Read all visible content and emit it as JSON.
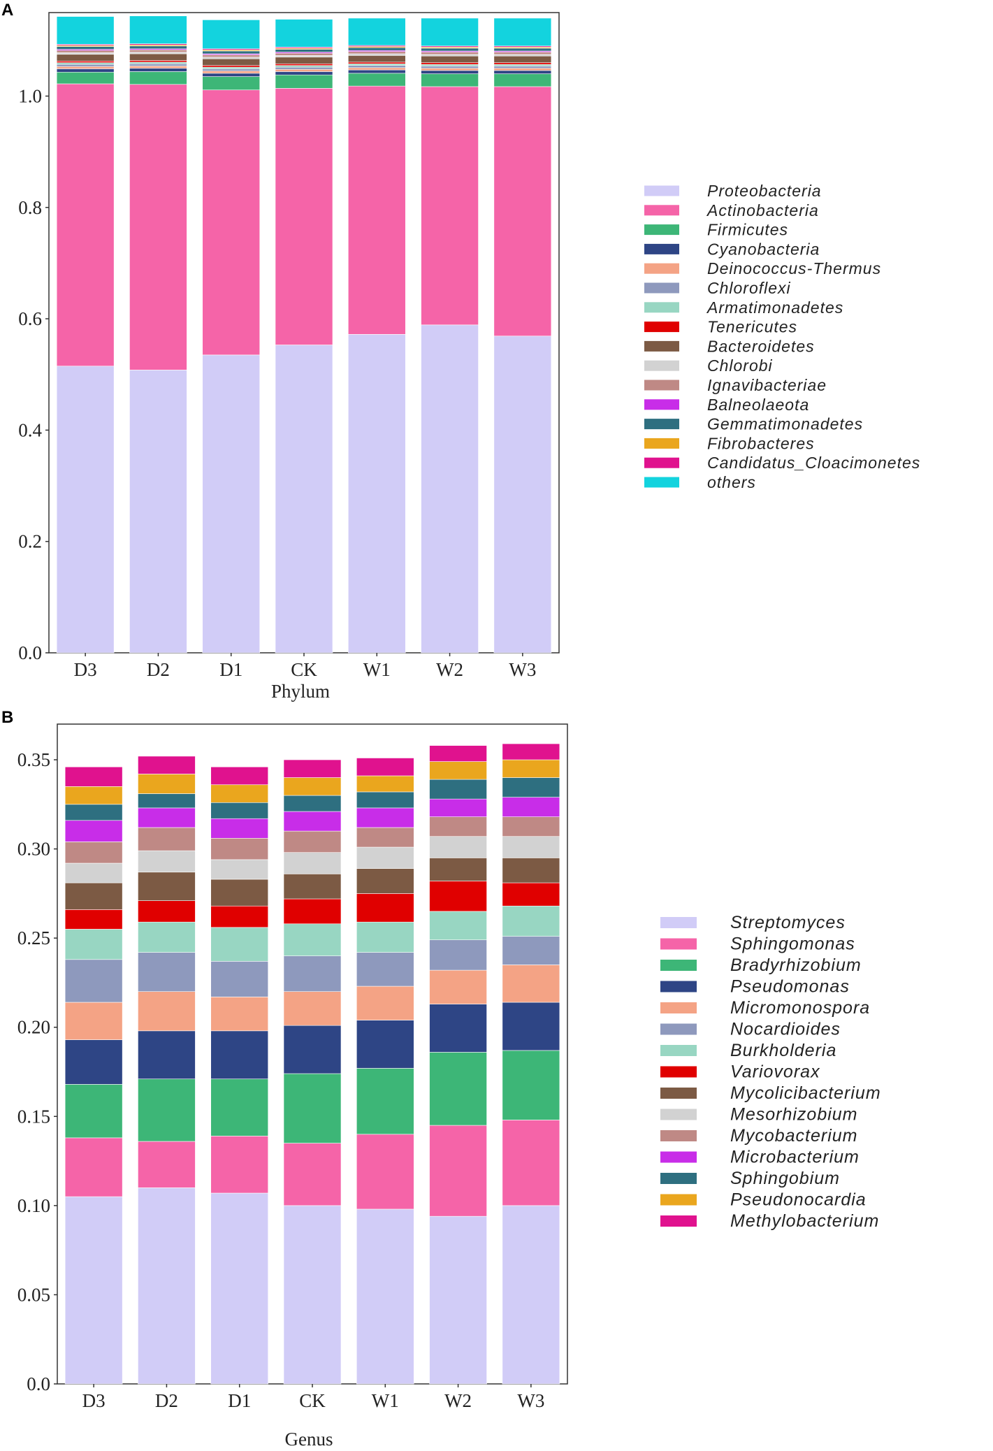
{
  "chart_data": [
    {
      "panel": "A",
      "type": "bar",
      "stacked": true,
      "title": "",
      "xlabel": "Phylum",
      "ylabel": "",
      "ylim": [
        0,
        1.15
      ],
      "yticks": [
        "0.0",
        "0.2",
        "0.4",
        "0.6",
        "0.8",
        "1.0"
      ],
      "ytick_values": [
        0,
        0.2,
        0.4,
        0.6,
        0.8,
        1.0
      ],
      "categories": [
        "D3",
        "D2",
        "D1",
        "CK",
        "W1",
        "W2",
        "W3"
      ],
      "series": [
        {
          "name": "Proteobacteria",
          "color": "#d1ccf7",
          "values": [
            0.515,
            0.508,
            0.535,
            0.553,
            0.572,
            0.589,
            0.569
          ]
        },
        {
          "name": "Actinobacteria",
          "color": "#f564a8",
          "values": [
            0.507,
            0.513,
            0.476,
            0.461,
            0.446,
            0.428,
            0.448
          ]
        },
        {
          "name": "Firmicutes",
          "color": "#3db677",
          "values": [
            0.021,
            0.023,
            0.024,
            0.024,
            0.023,
            0.023,
            0.023
          ]
        },
        {
          "name": "Cyanobacteria",
          "color": "#2e4585",
          "values": [
            0.006,
            0.006,
            0.006,
            0.006,
            0.006,
            0.006,
            0.006
          ]
        },
        {
          "name": "Deinococcus-Thermus",
          "color": "#f4a385",
          "values": [
            0.004,
            0.004,
            0.004,
            0.004,
            0.004,
            0.004,
            0.004
          ]
        },
        {
          "name": "Chloroflexi",
          "color": "#8e99bd",
          "values": [
            0.004,
            0.004,
            0.004,
            0.004,
            0.004,
            0.004,
            0.004
          ]
        },
        {
          "name": "Armatimonadetes",
          "color": "#98d6c2",
          "values": [
            0.003,
            0.003,
            0.003,
            0.003,
            0.003,
            0.003,
            0.003
          ]
        },
        {
          "name": "Tenericutes",
          "color": "#e00000",
          "values": [
            0.003,
            0.003,
            0.003,
            0.003,
            0.003,
            0.003,
            0.003
          ]
        },
        {
          "name": "Bacteroidetes",
          "color": "#7c5a44",
          "values": [
            0.012,
            0.012,
            0.012,
            0.012,
            0.012,
            0.012,
            0.012
          ]
        },
        {
          "name": "Chlorobi",
          "color": "#d2d2d2",
          "values": [
            0.003,
            0.003,
            0.003,
            0.003,
            0.003,
            0.003,
            0.003
          ]
        },
        {
          "name": "Ignavibacteriae",
          "color": "#bf8985",
          "values": [
            0.004,
            0.004,
            0.004,
            0.004,
            0.004,
            0.004,
            0.004
          ]
        },
        {
          "name": "Balneolaeota",
          "color": "#c82de8",
          "values": [
            0.002,
            0.002,
            0.002,
            0.002,
            0.002,
            0.002,
            0.002
          ]
        },
        {
          "name": "Gemmatimonadetes",
          "color": "#2e6f80",
          "values": [
            0.005,
            0.005,
            0.005,
            0.005,
            0.005,
            0.005,
            0.005
          ]
        },
        {
          "name": "Fibrobacteres",
          "color": "#eaa61e",
          "values": [
            0.002,
            0.002,
            0.002,
            0.002,
            0.002,
            0.002,
            0.002
          ]
        },
        {
          "name": "Candidatus_Cloacimonetes",
          "color": "#e0128e",
          "values": [
            0.002,
            0.002,
            0.002,
            0.002,
            0.002,
            0.002,
            0.002
          ]
        },
        {
          "name": "others",
          "color": "#13d3de",
          "values": [
            0.05,
            0.05,
            0.052,
            0.05,
            0.049,
            0.05,
            0.05
          ]
        }
      ]
    },
    {
      "panel": "B",
      "type": "bar",
      "stacked": true,
      "title": "",
      "xlabel": "Genus",
      "ylabel": "",
      "ylim": [
        0,
        0.37
      ],
      "yticks": [
        "0.0",
        "0.05",
        "0.10",
        "0.15",
        "0.20",
        "0.25",
        "0.30",
        "0.35"
      ],
      "ytick_values": [
        0,
        0.05,
        0.1,
        0.15,
        0.2,
        0.25,
        0.3,
        0.35
      ],
      "categories": [
        "D3",
        "D2",
        "D1",
        "CK",
        "W1",
        "W2",
        "W3"
      ],
      "series": [
        {
          "name": "Streptomyces",
          "color": "#d1ccf7",
          "values": [
            0.105,
            0.11,
            0.107,
            0.1,
            0.098,
            0.094,
            0.1
          ]
        },
        {
          "name": "Sphingomonas",
          "color": "#f564a8",
          "values": [
            0.033,
            0.026,
            0.032,
            0.035,
            0.042,
            0.051,
            0.048
          ]
        },
        {
          "name": "Bradyrhizobium",
          "color": "#3db677",
          "values": [
            0.03,
            0.035,
            0.032,
            0.039,
            0.037,
            0.041,
            0.039
          ]
        },
        {
          "name": "Pseudomonas",
          "color": "#2e4585",
          "values": [
            0.025,
            0.027,
            0.027,
            0.027,
            0.027,
            0.027,
            0.027
          ]
        },
        {
          "name": "Micromonospora",
          "color": "#f4a385",
          "values": [
            0.021,
            0.022,
            0.019,
            0.019,
            0.019,
            0.019,
            0.021
          ]
        },
        {
          "name": "Nocardioides",
          "color": "#8e99bd",
          "values": [
            0.024,
            0.022,
            0.02,
            0.02,
            0.019,
            0.017,
            0.016
          ]
        },
        {
          "name": "Burkholderia",
          "color": "#98d6c2",
          "values": [
            0.017,
            0.017,
            0.019,
            0.018,
            0.017,
            0.016,
            0.017
          ]
        },
        {
          "name": "Variovorax",
          "color": "#e00000",
          "values": [
            0.011,
            0.012,
            0.012,
            0.014,
            0.016,
            0.017,
            0.013
          ]
        },
        {
          "name": "Mycolicibacterium",
          "color": "#7c5a44",
          "values": [
            0.015,
            0.016,
            0.015,
            0.014,
            0.014,
            0.013,
            0.014
          ]
        },
        {
          "name": "Mesorhizobium",
          "color": "#d2d2d2",
          "values": [
            0.011,
            0.012,
            0.011,
            0.012,
            0.012,
            0.012,
            0.012
          ]
        },
        {
          "name": "Mycobacterium",
          "color": "#bf8985",
          "values": [
            0.012,
            0.013,
            0.012,
            0.012,
            0.011,
            0.011,
            0.011
          ]
        },
        {
          "name": "Microbacterium",
          "color": "#c82de8",
          "values": [
            0.012,
            0.011,
            0.011,
            0.011,
            0.011,
            0.01,
            0.011
          ]
        },
        {
          "name": "Sphingobium",
          "color": "#2e6f80",
          "values": [
            0.009,
            0.008,
            0.009,
            0.009,
            0.009,
            0.011,
            0.011
          ]
        },
        {
          "name": "Pseudonocardia",
          "color": "#eaa61e",
          "values": [
            0.01,
            0.011,
            0.01,
            0.01,
            0.009,
            0.01,
            0.01
          ]
        },
        {
          "name": "Methylobacterium",
          "color": "#e0128e",
          "values": [
            0.011,
            0.01,
            0.01,
            0.01,
            0.01,
            0.009,
            0.009
          ]
        }
      ]
    }
  ]
}
